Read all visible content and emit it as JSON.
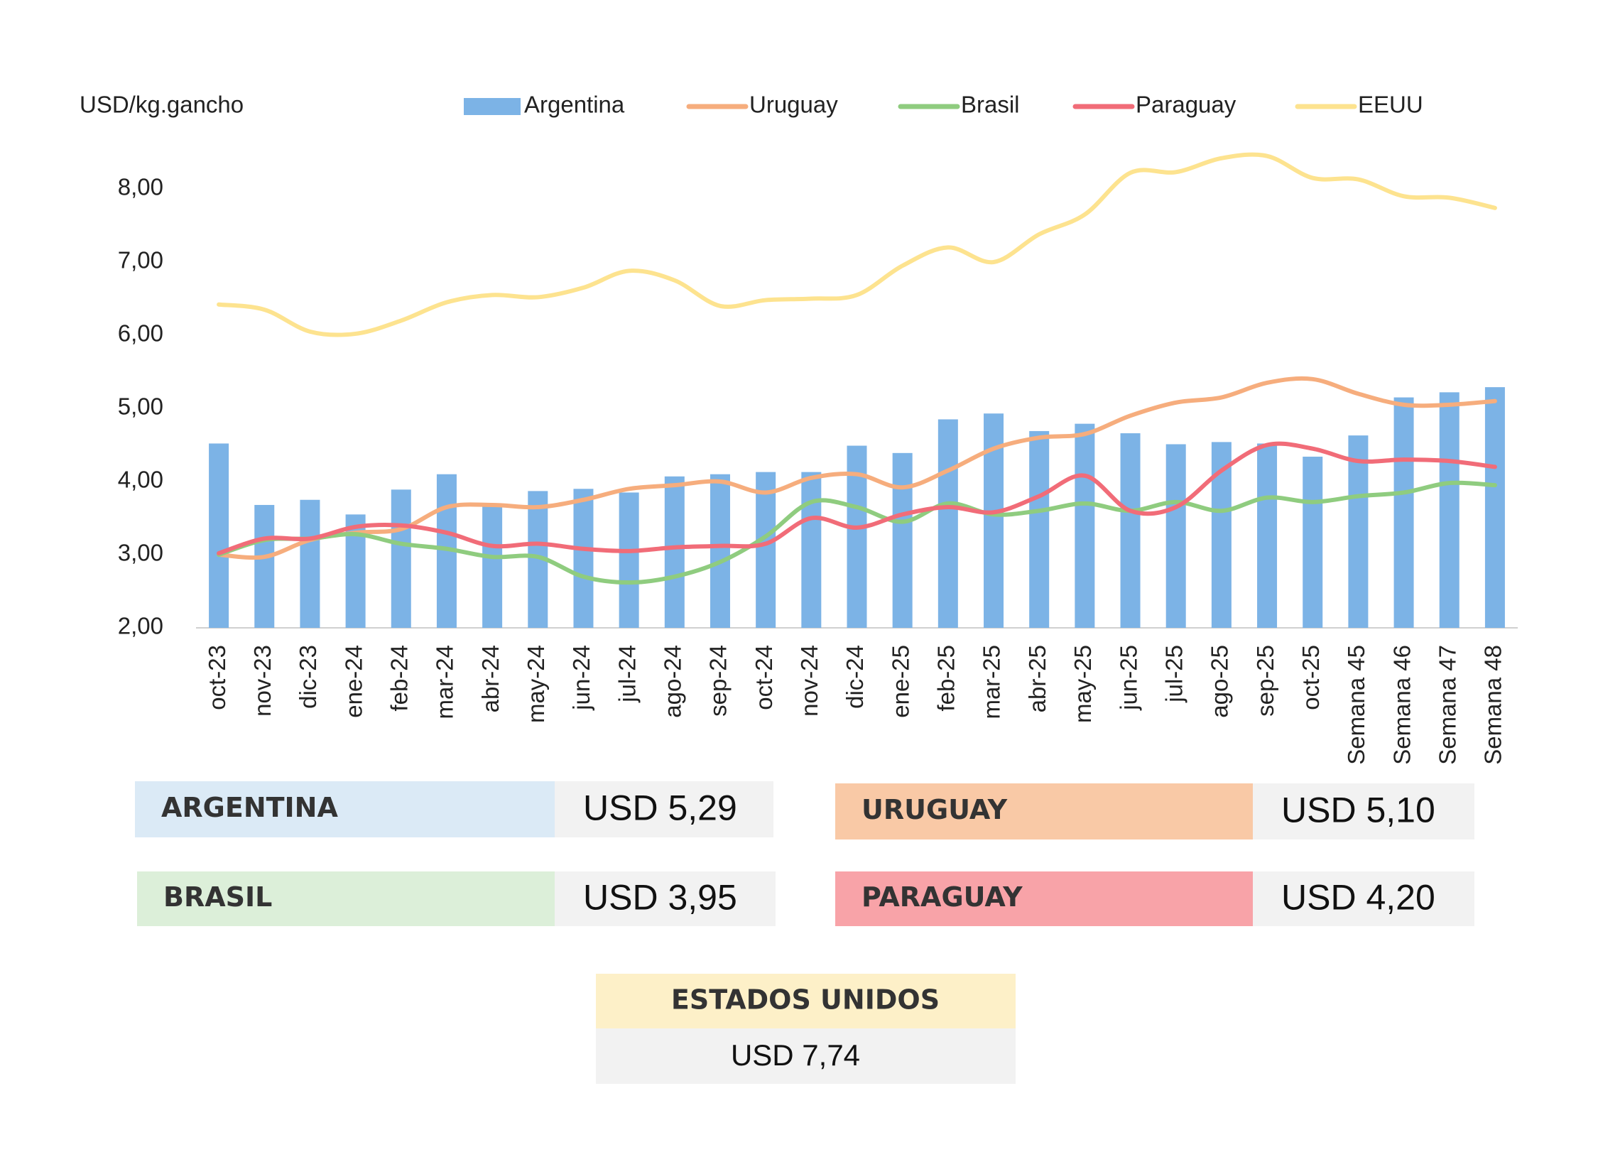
{
  "chart_data": {
    "type": "bar_line",
    "y_label": "USD/kg.gancho",
    "categories": [
      "oct-23",
      "nov-23",
      "dic-23",
      "ene-24",
      "feb-24",
      "mar-24",
      "abr-24",
      "may-24",
      "jun-24",
      "jul-24",
      "ago-24",
      "sep-24",
      "oct-24",
      "nov-24",
      "dic-24",
      "ene-25",
      "feb-25",
      "mar-25",
      "abr-25",
      "may-25",
      "jun-25",
      "jul-25",
      "ago-25",
      "sep-25",
      "oct-25",
      "Semana 45",
      "Semana 46",
      "Semana 47",
      "Semana 48"
    ],
    "series": [
      {
        "name": "Argentina",
        "type": "bar",
        "color": "#7cb3e6",
        "values": [
          4.52,
          3.68,
          3.75,
          3.55,
          3.89,
          4.1,
          3.68,
          3.87,
          3.9,
          3.85,
          4.07,
          4.1,
          4.13,
          4.13,
          4.49,
          4.39,
          4.85,
          4.93,
          4.69,
          4.79,
          4.66,
          4.51,
          4.54,
          4.52,
          4.34,
          4.63,
          5.15,
          5.22,
          5.29
        ]
      },
      {
        "name": "Uruguay",
        "type": "line",
        "color": "#f6ad7d",
        "values": [
          3.0,
          2.97,
          3.2,
          3.3,
          3.35,
          3.65,
          3.68,
          3.65,
          3.75,
          3.9,
          3.95,
          4.0,
          3.85,
          4.05,
          4.1,
          3.92,
          4.15,
          4.45,
          4.6,
          4.65,
          4.9,
          5.08,
          5.15,
          5.35,
          5.4,
          5.2,
          5.05,
          5.05,
          5.1
        ]
      },
      {
        "name": "Brasil",
        "type": "line",
        "color": "#8fcc7f",
        "values": [
          3.0,
          3.2,
          3.22,
          3.28,
          3.15,
          3.08,
          2.97,
          2.97,
          2.7,
          2.62,
          2.7,
          2.9,
          3.25,
          3.72,
          3.65,
          3.45,
          3.7,
          3.55,
          3.6,
          3.7,
          3.6,
          3.72,
          3.6,
          3.78,
          3.72,
          3.8,
          3.85,
          3.98,
          3.95
        ]
      },
      {
        "name": "Paraguay",
        "type": "line",
        "color": "#f16c78",
        "values": [
          3.02,
          3.22,
          3.22,
          3.38,
          3.4,
          3.3,
          3.12,
          3.15,
          3.08,
          3.05,
          3.1,
          3.12,
          3.15,
          3.5,
          3.37,
          3.55,
          3.65,
          3.58,
          3.8,
          4.08,
          3.6,
          3.65,
          4.15,
          4.5,
          4.45,
          4.28,
          4.3,
          4.28,
          4.2
        ]
      },
      {
        "name": "EEUU",
        "type": "line",
        "color": "#fde38f",
        "values": [
          6.42,
          6.35,
          6.05,
          6.02,
          6.2,
          6.45,
          6.55,
          6.52,
          6.65,
          6.88,
          6.75,
          6.4,
          6.48,
          6.5,
          6.55,
          6.95,
          7.2,
          7.0,
          7.38,
          7.65,
          8.22,
          8.23,
          8.42,
          8.45,
          8.15,
          8.13,
          7.9,
          7.88,
          7.74
        ]
      }
    ],
    "ylim": [
      2,
      8.5
    ],
    "yticks": [
      {
        "value": 2,
        "label": "2,00"
      },
      {
        "value": 3,
        "label": "3,00"
      },
      {
        "value": 4,
        "label": "4,00"
      },
      {
        "value": 5,
        "label": "5,00"
      },
      {
        "value": 6,
        "label": "6,00"
      },
      {
        "value": 7,
        "label": "7,00"
      },
      {
        "value": 8,
        "label": "8,00"
      }
    ],
    "legend": "top"
  },
  "summary": [
    {
      "label": "ARGENTINA",
      "value": "USD 5,29",
      "color": "#dbeaf6"
    },
    {
      "label": "URUGUAY",
      "value": "USD 5,10",
      "color": "#f9c9a6"
    },
    {
      "label": "BRASIL",
      "value": "USD 3,95",
      "color": "#dcefd9"
    },
    {
      "label": "PARAGUAY",
      "value": "USD 4,20",
      "color": "#f8a3a8"
    },
    {
      "label": "ESTADOS UNIDOS",
      "value": "USD 7,74",
      "color": "#fdf0c8"
    }
  ]
}
